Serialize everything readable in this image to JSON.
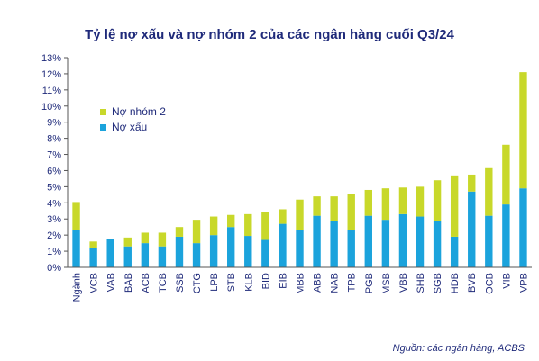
{
  "title": "Tỷ lệ nợ xấu và nợ nhóm 2 của các ngân hàng cuối Q3/24",
  "source": "Nguồn: các ngân hàng, ACBS",
  "colors": {
    "npl": "#1ba3dc",
    "group2": "#c8d82a",
    "text": "#1f2a7a",
    "axis": "#555555"
  },
  "chart_data": {
    "type": "bar",
    "stacked": true,
    "title": "Tỷ lệ nợ xấu và nợ nhóm 2 của các ngân hàng cuối Q3/24",
    "xlabel": "",
    "ylabel": "",
    "ylim": [
      0,
      13
    ],
    "yticks": [
      "0%",
      "1%",
      "2%",
      "3%",
      "4%",
      "5%",
      "6%",
      "7%",
      "8%",
      "9%",
      "10%",
      "11%",
      "12%",
      "13%"
    ],
    "legend_position": "upper-left",
    "grid": false,
    "categories": [
      "Ngành",
      "VCB",
      "VAB",
      "BAB",
      "ACB",
      "TCB",
      "SSB",
      "CTG",
      "LPB",
      "STB",
      "KLB",
      "BID",
      "EIB",
      "MBB",
      "ABB",
      "NAB",
      "TPB",
      "PGB",
      "MSB",
      "VBB",
      "SHB",
      "SGB",
      "HDB",
      "BVB",
      "OCB",
      "VIB",
      "VPB"
    ],
    "series": [
      {
        "name": "Nợ xấu",
        "values": [
          2.3,
          1.2,
          1.75,
          1.3,
          1.5,
          1.3,
          1.9,
          1.5,
          2.0,
          2.5,
          1.95,
          1.7,
          2.7,
          2.3,
          3.2,
          2.9,
          2.3,
          3.2,
          2.95,
          3.3,
          3.15,
          2.85,
          1.9,
          4.7,
          3.2,
          3.9,
          4.9
        ]
      },
      {
        "name": "Nợ nhóm 2",
        "values": [
          1.75,
          0.4,
          0.0,
          0.55,
          0.65,
          0.85,
          0.6,
          1.45,
          1.15,
          0.75,
          1.35,
          1.75,
          0.9,
          1.9,
          1.2,
          1.5,
          2.25,
          1.6,
          1.95,
          1.65,
          1.85,
          2.55,
          3.8,
          1.05,
          2.95,
          3.7,
          7.2
        ]
      }
    ]
  }
}
